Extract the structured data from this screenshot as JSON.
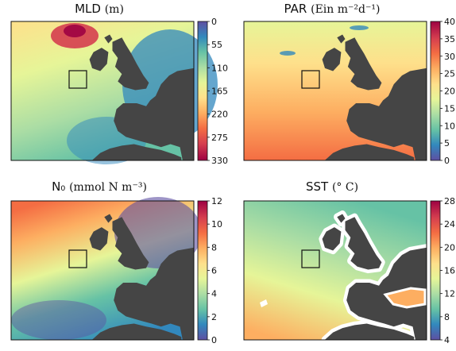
{
  "panels": [
    {
      "title": "MLD",
      "unit": "(m)",
      "colorbar_ticks": [
        "0",
        "55",
        "110",
        "165",
        "220",
        "275",
        "330"
      ],
      "colorbar_reversed": true
    },
    {
      "title": "PAR",
      "unit": "(Ein m⁻²d⁻¹)",
      "colorbar_ticks": [
        "0",
        "5",
        "10",
        "15",
        "20",
        "25",
        "30",
        "35",
        "40"
      ],
      "colorbar_reversed": false
    },
    {
      "title": "N₀",
      "unit": "(mmol N m⁻³)",
      "colorbar_ticks": [
        "0",
        "2",
        "4",
        "6",
        "8",
        "10",
        "12"
      ],
      "colorbar_reversed": false
    },
    {
      "title": "SST",
      "unit": "(° C)",
      "colorbar_ticks": [
        "4",
        "8",
        "12",
        "16",
        "20",
        "24",
        "28"
      ],
      "colorbar_reversed": false
    }
  ],
  "colors": {
    "land": "#454545",
    "colormap": [
      "#5e4fa2",
      "#3288bd",
      "#66c2a5",
      "#abdda4",
      "#e6f598",
      "#fee08b",
      "#fdae61",
      "#f46d43",
      "#d53e4f",
      "#9e0142"
    ]
  },
  "chart_data": [
    {
      "type": "heatmap",
      "title": "MLD (m)",
      "colorbar_range": [
        0,
        330
      ],
      "study_box": true
    },
    {
      "type": "heatmap",
      "title": "PAR (Ein m⁻²d⁻¹)",
      "colorbar_range": [
        0,
        40
      ],
      "study_box": true
    },
    {
      "type": "heatmap",
      "title": "N₀ (mmol N m⁻³)",
      "colorbar_range": [
        0,
        12
      ],
      "study_box": true
    },
    {
      "type": "heatmap",
      "title": "SST (° C)",
      "colorbar_range": [
        4,
        28
      ],
      "study_box": true
    }
  ]
}
